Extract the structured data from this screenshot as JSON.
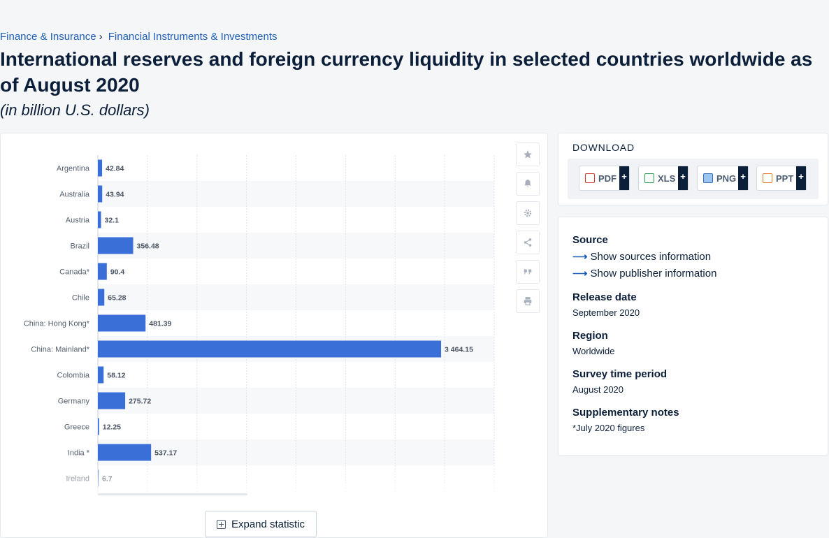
{
  "breadcrumb": {
    "item1": "Finance & Insurance",
    "separator": "›",
    "item2": "Financial Instruments & Investments"
  },
  "title": "International reserves and foreign currency liquidity in selected countries worldwide as of August 2020",
  "subtitle": "(in billion U.S. dollars)",
  "chart_data": {
    "type": "bar",
    "orientation": "horizontal",
    "categories": [
      "Argentina",
      "Australia",
      "Austria",
      "Brazil",
      "Canada*",
      "Chile",
      "China: Hong Kong*",
      "China: Mainland*",
      "Colombia",
      "Germany",
      "Greece",
      "India *",
      "Ireland"
    ],
    "values": [
      42.84,
      43.94,
      32.1,
      356.48,
      90.4,
      65.28,
      481.39,
      3464.15,
      58.12,
      275.72,
      12.25,
      537.17,
      6.7
    ],
    "value_labels": [
      "42.84",
      "43.94",
      "32.1",
      "356.48",
      "90.4",
      "65.28",
      "481.39",
      "3 464.15",
      "58.12",
      "275.72",
      "12.25",
      "537.17",
      "6.7"
    ],
    "xlim": [
      0,
      4000
    ],
    "grid": true,
    "bar_color": "#3a6fd8"
  },
  "expand_label": "Expand statistic",
  "tools": {
    "favorite": "star-icon",
    "notify": "bell-icon",
    "settings": "gear-icon",
    "share": "share-icon",
    "cite": "quote-icon",
    "print": "print-icon"
  },
  "download": {
    "title": "DOWNLOAD",
    "pdf": "PDF",
    "xls": "XLS",
    "png": "PNG",
    "ppt": "PPT",
    "plus": "+"
  },
  "info": {
    "source_h": "Source",
    "sources_link": "Show sources information",
    "publisher_link": "Show publisher information",
    "release_h": "Release date",
    "release_v": "September 2020",
    "region_h": "Region",
    "region_v": "Worldwide",
    "period_h": "Survey time period",
    "period_v": "August 2020",
    "notes_h": "Supplementary notes",
    "notes_v": "*July 2020 figures"
  }
}
